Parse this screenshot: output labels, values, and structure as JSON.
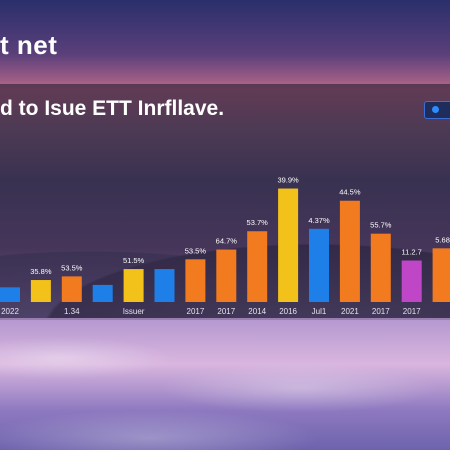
{
  "header": {
    "top_title": "t net",
    "panel_title": "d to Isue ETT Inrfllave."
  },
  "colors": {
    "blue": "#1f7fe8",
    "yellow": "#f2c21a",
    "orange": "#f27a1f",
    "purple": "#c046c8",
    "axis": "#e6e0ee"
  },
  "chart_data": {
    "type": "bar",
    "title": "",
    "xlabel": "",
    "ylabel": "",
    "grid": false,
    "legend_position": "top-right",
    "categories": [
      "2022",
      "",
      "1.34",
      "",
      "Issuer",
      "",
      "2017",
      "2017",
      "2014",
      "2016",
      "Jul1",
      "2021",
      "2017",
      "2017",
      ""
    ],
    "values": [
      12,
      18,
      21,
      14,
      27,
      27,
      35,
      43,
      58,
      93,
      60,
      83,
      56,
      34,
      44
    ],
    "value_labels": [
      "",
      "35.8%",
      "53.5%",
      "",
      "51.5%",
      "",
      "53.5%",
      "64.7%",
      "53.7%",
      "39.9%",
      "4.37%",
      "44.5%",
      "55.7%",
      "11.2.7",
      "5.68"
    ],
    "bar_colors": [
      "blue",
      "yellow",
      "orange",
      "blue",
      "yellow",
      "blue",
      "orange",
      "orange",
      "orange",
      "yellow",
      "blue",
      "orange",
      "orange",
      "purple",
      "orange"
    ],
    "ylim": [
      0,
      100
    ]
  }
}
